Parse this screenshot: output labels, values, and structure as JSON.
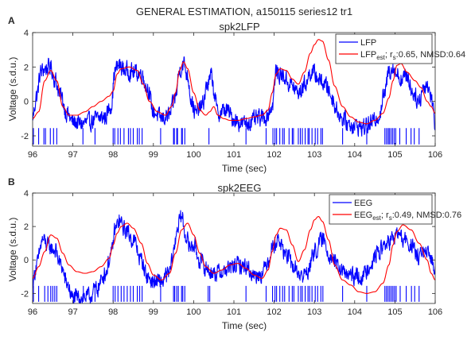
{
  "figure": {
    "suptitle": "GENERAL ESTIMATION, a150115 series12 tr1"
  },
  "colors": {
    "signal": "#0000ff",
    "estimate": "#ff0000",
    "spikes": "#0000ff",
    "axes": "#262626"
  },
  "chart_data": [
    {
      "type": "line",
      "panel_label": "A",
      "title": "spk2LFP",
      "xlabel": "Time (sec)",
      "ylabel": "Voltage (s.d.u.)",
      "xlim": [
        96,
        106
      ],
      "ylim": [
        -2.6,
        4
      ],
      "xticks": [
        "96",
        "97",
        "98",
        "99",
        "100",
        "101",
        "102",
        "103",
        "104",
        "105",
        "106"
      ],
      "yticks": [
        "-2",
        "0",
        "2",
        "4"
      ],
      "grid": false,
      "legend": {
        "placement": "top-right",
        "entries": [
          {
            "text": "LFP"
          },
          {
            "text": "LFP",
            "sub": "est",
            "mid": "; r",
            "sub2": "s",
            "tail": ":0.65, NMSD:0.64"
          }
        ]
      },
      "series": [
        {
          "name": "LFP",
          "style": "noisy",
          "x": [
            96.0,
            96.1,
            96.2,
            96.3,
            96.45,
            96.55,
            96.7,
            96.85,
            97.0,
            97.2,
            97.4,
            97.6,
            97.8,
            97.95,
            98.05,
            98.15,
            98.3,
            98.5,
            98.7,
            98.85,
            99.0,
            99.2,
            99.4,
            99.55,
            99.65,
            99.75,
            99.85,
            99.95,
            100.05,
            100.2,
            100.35,
            100.45,
            100.5,
            100.6,
            100.8,
            101.0,
            101.2,
            101.4,
            101.6,
            101.8,
            101.95,
            102.05,
            102.2,
            102.4,
            102.6,
            102.8,
            102.9,
            103.0,
            103.15,
            103.3,
            103.45,
            103.55,
            103.7,
            103.85,
            104.0,
            104.2,
            104.4,
            104.6,
            104.75,
            104.85,
            104.95,
            105.05,
            105.15,
            105.3,
            105.45,
            105.6,
            105.7,
            105.8,
            105.9,
            106.0
          ],
          "y": [
            -0.9,
            0.3,
            1.7,
            1.9,
            2.0,
            1.3,
            0.3,
            -0.7,
            -1.2,
            -1.3,
            -1.2,
            -1.0,
            -0.9,
            -0.2,
            1.8,
            2.1,
            1.8,
            1.7,
            1.6,
            0.8,
            -0.6,
            -1.0,
            -0.8,
            0.3,
            1.8,
            2.2,
            1.5,
            0.0,
            -0.7,
            -0.3,
            1.0,
            1.5,
            0.6,
            -0.7,
            -0.5,
            -1.0,
            -1.3,
            -1.2,
            -1.0,
            -0.9,
            -0.3,
            1.7,
            1.5,
            1.0,
            0.5,
            1.1,
            1.7,
            1.6,
            1.2,
            0.9,
            0.2,
            -0.5,
            -1.0,
            -1.3,
            -1.4,
            -1.5,
            -1.3,
            -0.8,
            0.5,
            1.8,
            2.0,
            1.6,
            1.3,
            1.5,
            0.5,
            0.0,
            0.8,
            1.0,
            0.3,
            -1.3
          ]
        },
        {
          "name": "LFP_est",
          "style": "smooth",
          "x": [
            96.0,
            96.15,
            96.3,
            96.45,
            96.6,
            96.75,
            96.9,
            97.1,
            97.3,
            97.5,
            97.7,
            97.9,
            98.0,
            98.1,
            98.2,
            98.4,
            98.6,
            98.75,
            98.9,
            99.1,
            99.3,
            99.45,
            99.55,
            99.65,
            99.75,
            99.85,
            100.0,
            100.15,
            100.3,
            100.4,
            100.5,
            100.6,
            100.75,
            100.9,
            101.1,
            101.3,
            101.5,
            101.7,
            101.85,
            101.95,
            102.05,
            102.15,
            102.3,
            102.45,
            102.6,
            102.75,
            102.9,
            103.0,
            103.1,
            103.2,
            103.35,
            103.5,
            103.7,
            103.9,
            104.1,
            104.3,
            104.5,
            104.7,
            104.85,
            104.95,
            105.05,
            105.15,
            105.3,
            105.5,
            105.65,
            105.8,
            105.9,
            106.0
          ],
          "y": [
            -1.0,
            -0.6,
            1.2,
            1.8,
            1.2,
            -0.3,
            -0.8,
            -0.8,
            -0.6,
            -0.3,
            0.0,
            0.3,
            0.6,
            1.6,
            1.9,
            2.0,
            1.8,
            1.0,
            0.0,
            -0.6,
            -0.8,
            -0.3,
            0.5,
            1.8,
            2.3,
            1.9,
            0.5,
            -0.5,
            -0.8,
            -0.6,
            -0.3,
            -0.8,
            -1.0,
            -1.1,
            -1.1,
            -1.0,
            -0.9,
            -0.8,
            -0.5,
            0.5,
            1.6,
            1.9,
            1.8,
            1.3,
            1.0,
            1.7,
            2.8,
            3.3,
            3.6,
            3.5,
            2.4,
            0.9,
            -0.3,
            -0.9,
            -1.2,
            -1.3,
            -1.1,
            -0.7,
            0.2,
            1.2,
            2.1,
            2.2,
            1.7,
            1.2,
            0.8,
            0.0,
            -0.3,
            -0.7
          ]
        }
      ],
      "spikes": [
        96.02,
        96.15,
        96.28,
        96.32,
        96.44,
        96.52,
        96.6,
        97.25,
        97.55,
        98.0,
        98.04,
        98.12,
        98.18,
        98.27,
        98.38,
        98.43,
        98.5,
        98.6,
        98.65,
        98.72,
        99.18,
        99.5,
        99.52,
        99.58,
        99.6,
        99.7,
        99.72,
        99.78,
        100.38,
        101.3,
        101.8,
        101.97,
        102.02,
        102.06,
        102.14,
        102.21,
        102.25,
        102.37,
        102.45,
        102.48,
        102.6,
        102.65,
        102.7,
        102.77,
        102.84,
        102.87,
        102.94,
        103.02,
        103.08,
        103.16,
        103.2,
        103.7,
        104.3,
        104.75,
        104.79,
        104.83,
        104.86,
        104.9,
        104.94,
        104.98,
        105.02,
        105.12,
        105.28,
        105.4,
        105.48,
        105.6
      ]
    },
    {
      "type": "line",
      "panel_label": "B",
      "title": "spk2EEG",
      "xlabel": "Time (sec)",
      "ylabel": "Voltage (s.d.u.)",
      "xlim": [
        96,
        106
      ],
      "ylim": [
        -2.6,
        4
      ],
      "xticks": [
        "96",
        "97",
        "98",
        "99",
        "100",
        "101",
        "102",
        "103",
        "104",
        "105",
        "106"
      ],
      "yticks": [
        "-2",
        "0",
        "2",
        "4"
      ],
      "grid": false,
      "legend": {
        "placement": "top-right",
        "entries": [
          {
            "text": "EEG"
          },
          {
            "text": "EEG",
            "sub": "est",
            "mid": "; r",
            "sub2": "s",
            "tail": ":0.49, NMSD:0.76"
          }
        ]
      },
      "series": [
        {
          "name": "EEG",
          "style": "noisy",
          "x": [
            96.0,
            96.1,
            96.25,
            96.4,
            96.55,
            96.7,
            96.85,
            97.0,
            97.2,
            97.4,
            97.6,
            97.8,
            97.95,
            98.05,
            98.15,
            98.3,
            98.5,
            98.7,
            98.85,
            99.0,
            99.2,
            99.4,
            99.5,
            99.6,
            99.7,
            99.8,
            99.9,
            100.0,
            100.15,
            100.3,
            100.5,
            100.7,
            100.9,
            101.1,
            101.3,
            101.5,
            101.7,
            101.85,
            101.95,
            102.1,
            102.3,
            102.5,
            102.7,
            102.85,
            103.0,
            103.2,
            103.4,
            103.6,
            103.8,
            104.0,
            104.2,
            104.4,
            104.6,
            104.8,
            104.95,
            105.05,
            105.2,
            105.4,
            105.55,
            105.7,
            105.85,
            106.0
          ],
          "y": [
            -1.3,
            -0.3,
            1.2,
            0.8,
            0.6,
            -0.3,
            -1.4,
            -2.3,
            -2.2,
            -2.2,
            -1.7,
            -0.8,
            0.3,
            1.8,
            2.3,
            1.8,
            1.2,
            0.0,
            -1.0,
            -1.3,
            -1.3,
            -0.8,
            0.5,
            2.0,
            2.6,
            1.5,
            0.8,
            0.9,
            0.0,
            -0.5,
            -0.8,
            -0.7,
            -0.5,
            -0.3,
            -0.4,
            -0.9,
            -0.8,
            0.0,
            0.8,
            1.2,
            0.3,
            -0.5,
            -1.0,
            -0.6,
            0.5,
            1.2,
            0.3,
            -0.5,
            -0.9,
            -1.0,
            -1.0,
            -0.2,
            0.5,
            1.0,
            1.2,
            1.6,
            1.2,
            0.9,
            0.2,
            0.4,
            0.2,
            -0.4
          ]
        },
        {
          "name": "EEG_est",
          "style": "smooth",
          "x": [
            96.0,
            96.15,
            96.3,
            96.45,
            96.6,
            96.75,
            96.9,
            97.1,
            97.3,
            97.5,
            97.7,
            97.9,
            98.0,
            98.1,
            98.2,
            98.35,
            98.5,
            98.7,
            98.85,
            99.0,
            99.2,
            99.4,
            99.55,
            99.7,
            99.85,
            100.0,
            100.15,
            100.3,
            100.5,
            100.7,
            100.9,
            101.1,
            101.3,
            101.5,
            101.7,
            101.85,
            101.95,
            102.05,
            102.15,
            102.3,
            102.45,
            102.6,
            102.75,
            102.9,
            103.0,
            103.1,
            103.2,
            103.35,
            103.5,
            103.7,
            103.9,
            104.1,
            104.3,
            104.5,
            104.7,
            104.85,
            104.95,
            105.05,
            105.2,
            105.4,
            105.6,
            105.8,
            105.9,
            106.0
          ],
          "y": [
            -1.1,
            -0.4,
            0.5,
            1.5,
            1.3,
            0.4,
            -0.3,
            -0.7,
            -0.8,
            -0.7,
            -0.4,
            0.1,
            0.9,
            1.6,
            2.0,
            2.2,
            1.9,
            1.0,
            -0.2,
            -0.9,
            -1.2,
            -0.8,
            0.4,
            1.8,
            2.2,
            1.5,
            0.4,
            -0.4,
            -0.8,
            -0.6,
            -0.3,
            -0.2,
            -0.5,
            -0.9,
            -1.1,
            -0.6,
            0.5,
            1.5,
            1.9,
            1.8,
            0.9,
            -0.1,
            0.6,
            1.8,
            2.4,
            2.6,
            2.3,
            1.2,
            -0.3,
            -1.2,
            -1.5,
            -1.9,
            -2.0,
            -1.9,
            -1.4,
            -0.3,
            0.9,
            1.7,
            2.1,
            1.8,
            1.0,
            0.0,
            -0.8,
            -1.2
          ]
        }
      ],
      "spikes": [
        96.02,
        96.15,
        96.3,
        96.38,
        96.45,
        96.5,
        96.55,
        96.6,
        97.26,
        97.55,
        98.0,
        98.05,
        98.12,
        98.2,
        98.27,
        98.35,
        98.43,
        98.5,
        98.6,
        98.66,
        98.72,
        99.18,
        99.5,
        99.53,
        99.58,
        99.62,
        99.7,
        99.73,
        99.78,
        100.36,
        100.4,
        101.3,
        101.8,
        101.96,
        102.02,
        102.06,
        102.14,
        102.21,
        102.26,
        102.37,
        102.45,
        102.49,
        102.6,
        102.66,
        102.7,
        102.77,
        102.84,
        102.88,
        102.94,
        103.02,
        103.08,
        103.16,
        103.21,
        103.7,
        104.3,
        104.75,
        104.79,
        104.83,
        104.87,
        104.91,
        104.95,
        104.99,
        105.03,
        105.13,
        105.28,
        105.41,
        105.49,
        105.6
      ]
    }
  ]
}
